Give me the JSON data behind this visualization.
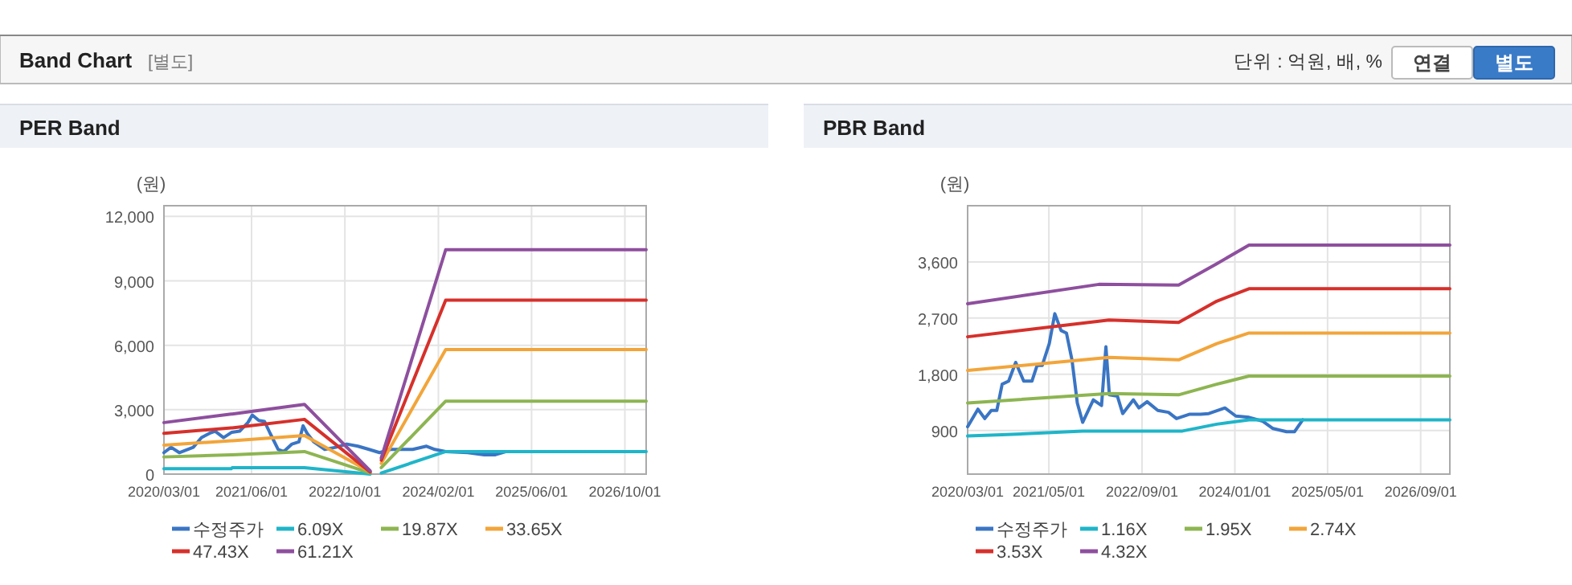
{
  "chart_data": [
    {
      "type": "other",
      "title": "Band Chart",
      "subtitle": "[별도]",
      "annotations": [
        "단위 : 억원, 배, %",
        "연결",
        "별도"
      ]
    },
    {
      "type": "line",
      "title": "PER Band",
      "ylabel": "(원)",
      "legend": "bottom",
      "grid": true,
      "xlim": [
        "2020-03-01",
        "2027-01-20"
      ],
      "ylim": [
        0,
        12500
      ],
      "xticks": [
        {
          "value": "2020-03-01",
          "label": "2020/03/01"
        },
        {
          "value": "2021-06-01",
          "label": "2021/06/01"
        },
        {
          "value": "2022-10-01",
          "label": "2022/10/01"
        },
        {
          "value": "2024-02-01",
          "label": "2024/02/01"
        },
        {
          "value": "2025-06-01",
          "label": "2025/06/01"
        },
        {
          "value": "2026-10-01",
          "label": "2026/10/01"
        }
      ],
      "yticks": [
        0,
        {
          "value": 3000,
          "label": "3,000"
        },
        {
          "value": 6000,
          "label": "6,000"
        },
        {
          "value": 9000,
          "label": "9,000"
        },
        {
          "value": 12000,
          "label": "12,000"
        }
      ],
      "series": [
        {
          "name": "수정주가",
          "color": "#3a75c4",
          "x": [
            "2020-03-01",
            "2020-04-07",
            "2020-05-20",
            "2020-08-01",
            "2020-09-13",
            "2020-10-25",
            "2020-11-23",
            "2021-01-06",
            "2021-02-18",
            "2021-03-31",
            "2021-05-13",
            "2021-06-05",
            "2021-07-09",
            "2021-08-08",
            "2021-09-06",
            "2021-10-18",
            "2021-11-16",
            "2021-12-29",
            "2022-02-03",
            "2022-02-25",
            "2022-03-18",
            "2022-04-22",
            "2022-06-18",
            "2022-08-15",
            "2022-10-11",
            "2022-12-08",
            "2023-02-04",
            "2023-03-31",
            "2023-05-27",
            "2023-09-20",
            "2023-12-01",
            "2024-01-13",
            "2024-03-10",
            "2024-07-03",
            "2024-09-27",
            "2024-11-24",
            "2025-01-20"
          ],
          "values": [
            1000,
            1250,
            1000,
            1250,
            1700,
            1900,
            2000,
            1700,
            1950,
            2000,
            2400,
            2750,
            2500,
            2450,
            1900,
            1150,
            1050,
            1400,
            1500,
            2250,
            1900,
            1500,
            1150,
            1250,
            1400,
            1300,
            1150,
            1000,
            1150,
            1150,
            1300,
            1150,
            1050,
            1000,
            900,
            900,
            1050
          ]
        },
        {
          "name": "6.09X",
          "color": "#1fb5c9",
          "x": [
            "2020-03-01",
            "2021-02-15",
            "2021-02-20",
            "2022-03-04",
            "2023-02-10",
            "2023-03-10",
            "2023-04-09",
            "2024-03-10",
            "2027-01-20"
          ],
          "values": [
            250,
            250,
            300,
            300,
            0,
            null,
            50,
            1050,
            1050
          ]
        },
        {
          "name": "19.87X",
          "color": "#8db551",
          "x": [
            "2020-03-01",
            "2021-02-15",
            "2021-02-20",
            "2022-03-04",
            "2023-02-10",
            "2023-03-10",
            "2023-04-09",
            "2024-03-10",
            "2027-01-20"
          ],
          "values": [
            800,
            900,
            900,
            1050,
            50,
            null,
            300,
            3400,
            3400
          ]
        },
        {
          "name": "33.65X",
          "color": "#f2a53a",
          "x": [
            "2020-03-01",
            "2021-02-15",
            "2021-02-20",
            "2022-03-04",
            "2023-02-10",
            "2023-03-10",
            "2023-04-09",
            "2024-03-10",
            "2027-01-20"
          ],
          "values": [
            1350,
            1550,
            1550,
            1800,
            100,
            null,
            500,
            5800,
            5800
          ]
        },
        {
          "name": "47.43X",
          "color": "#d6302b",
          "x": [
            "2020-03-01",
            "2021-02-15",
            "2021-02-20",
            "2022-03-04",
            "2023-02-10",
            "2023-03-10",
            "2023-04-09",
            "2024-03-10",
            "2027-01-20"
          ],
          "values": [
            1900,
            2150,
            2150,
            2550,
            100,
            null,
            650,
            8100,
            8100
          ]
        },
        {
          "name": "61.21X",
          "color": "#8e4f9e",
          "x": [
            "2020-03-01",
            "2021-02-15",
            "2021-02-20",
            "2022-03-04",
            "2023-02-10",
            "2023-03-10",
            "2023-04-09",
            "2024-03-10",
            "2027-01-20"
          ],
          "values": [
            2400,
            2800,
            2800,
            3250,
            150,
            null,
            750,
            10450,
            10450
          ]
        }
      ]
    },
    {
      "type": "line",
      "title": "PBR Band",
      "ylabel": "(원)",
      "legend": "bottom",
      "grid": true,
      "xlim": [
        "2020-03-01",
        "2027-02-01"
      ],
      "ylim": [
        200,
        4500
      ],
      "xticks": [
        {
          "value": "2020-03-01",
          "label": "2020/03/01"
        },
        {
          "value": "2021-05-01",
          "label": "2021/05/01"
        },
        {
          "value": "2022-09-01",
          "label": "2022/09/01"
        },
        {
          "value": "2024-01-01",
          "label": "2024/01/01"
        },
        {
          "value": "2025-05-01",
          "label": "2025/05/01"
        },
        {
          "value": "2026-09-01",
          "label": "2026/09/01"
        }
      ],
      "yticks": [
        900,
        {
          "value": 1800,
          "label": "1,800"
        },
        {
          "value": 2700,
          "label": "2,700"
        },
        {
          "value": 3600,
          "label": "3,600"
        }
      ],
      "series": [
        {
          "name": "수정주가",
          "color": "#3a75c4",
          "x": [
            "2020-03-01",
            "2020-04-24",
            "2020-05-30",
            "2020-07-03",
            "2020-08-01",
            "2020-08-29",
            "2020-10-02",
            "2020-11-08",
            "2020-12-20",
            "2021-02-01",
            "2021-02-28",
            "2021-03-27",
            "2021-05-03",
            "2021-06-01",
            "2021-07-04",
            "2021-08-01",
            "2021-08-30",
            "2021-09-27",
            "2021-10-25",
            "2021-12-20",
            "2022-02-01",
            "2022-02-24",
            "2022-03-14",
            "2022-04-25",
            "2022-05-23",
            "2022-07-18",
            "2022-08-16",
            "2022-09-28",
            "2022-11-23",
            "2023-01-18",
            "2023-03-01",
            "2023-05-10",
            "2023-07-05",
            "2023-08-17",
            "2023-11-10",
            "2024-01-06",
            "2024-03-15",
            "2024-05-24",
            "2024-07-19",
            "2024-09-28",
            "2024-11-09",
            "2024-12-22"
          ],
          "values": [
            960,
            1240,
            1090,
            1220,
            1220,
            1640,
            1690,
            1990,
            1690,
            1690,
            1940,
            1940,
            2290,
            2770,
            2500,
            2460,
            2030,
            1340,
            1030,
            1390,
            1300,
            2240,
            1470,
            1450,
            1170,
            1390,
            1260,
            1360,
            1220,
            1190,
            1090,
            1160,
            1160,
            1170,
            1260,
            1130,
            1110,
            1050,
            930,
            880,
            880,
            1070
          ]
        },
        {
          "name": "1.16X",
          "color": "#1fb5c9",
          "x": [
            "2020-03-01",
            "2020-08-28",
            "2021-10-25",
            "2023-04-01",
            "2023-09-28",
            "2024-03-15",
            "2027-02-01"
          ],
          "values": [
            810,
            830,
            890,
            890,
            1000,
            1070,
            1070
          ]
        },
        {
          "name": "1.95X",
          "color": "#8db551",
          "x": [
            "2020-03-01",
            "2022-03-12",
            "2023-03-12",
            "2023-09-28",
            "2024-03-15",
            "2027-02-01"
          ],
          "values": [
            1340,
            1490,
            1470,
            1640,
            1770,
            1770
          ]
        },
        {
          "name": "2.74X",
          "color": "#f2a53a",
          "x": [
            "2020-03-01",
            "2022-03-12",
            "2023-03-12",
            "2023-09-28",
            "2024-03-15",
            "2027-02-01"
          ],
          "values": [
            1860,
            2070,
            2030,
            2290,
            2460,
            2460
          ]
        },
        {
          "name": "3.53X",
          "color": "#d6302b",
          "x": [
            "2020-03-01",
            "2022-03-12",
            "2023-03-12",
            "2023-09-28",
            "2024-03-15",
            "2027-02-01"
          ],
          "values": [
            2400,
            2670,
            2630,
            2970,
            3170,
            3170
          ]
        },
        {
          "name": "4.32X",
          "color": "#8e4f9e",
          "x": [
            "2020-03-01",
            "2022-01-18",
            "2023-03-12",
            "2023-09-28",
            "2024-03-15",
            "2027-02-01"
          ],
          "values": [
            2930,
            3240,
            3230,
            3570,
            3870,
            3870
          ]
        }
      ]
    }
  ]
}
